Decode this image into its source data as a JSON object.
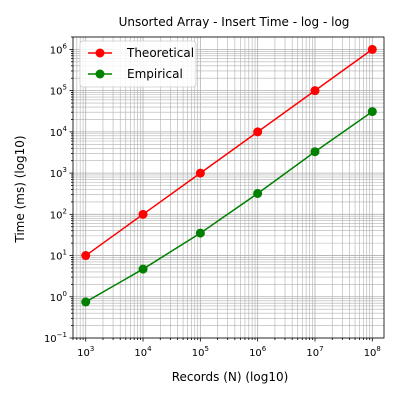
{
  "chart_data": {
    "type": "line",
    "title": "Unsorted Array - Insert Time - log - log",
    "xlabel": "Records (N) (log10)",
    "ylabel": "Time (ms) (log10)",
    "xscale": "log",
    "yscale": "log",
    "xlim": [
      600,
      160000000
    ],
    "ylim": [
      0.1,
      2000000
    ],
    "x_ticks": [
      {
        "value": 1000,
        "base": "10",
        "exp": "3"
      },
      {
        "value": 10000,
        "base": "10",
        "exp": "4"
      },
      {
        "value": 100000,
        "base": "10",
        "exp": "5"
      },
      {
        "value": 1000000,
        "base": "10",
        "exp": "6"
      },
      {
        "value": 10000000,
        "base": "10",
        "exp": "7"
      },
      {
        "value": 100000000,
        "base": "10",
        "exp": "8"
      }
    ],
    "y_ticks": [
      {
        "value": 0.1,
        "base": "10",
        "exp": "−1"
      },
      {
        "value": 1,
        "base": "10",
        "exp": "0"
      },
      {
        "value": 10,
        "base": "10",
        "exp": "1"
      },
      {
        "value": 100,
        "base": "10",
        "exp": "2"
      },
      {
        "value": 1000,
        "base": "10",
        "exp": "3"
      },
      {
        "value": 10000,
        "base": "10",
        "exp": "4"
      },
      {
        "value": 100000,
        "base": "10",
        "exp": "5"
      },
      {
        "value": 1000000,
        "base": "10",
        "exp": "6"
      }
    ],
    "grid": "major and minor",
    "legend_position": "top-left",
    "series": [
      {
        "name": "Theoretical",
        "color": "#ff0000",
        "x": [
          1000,
          10000,
          100000,
          1000000,
          10000000,
          100000000
        ],
        "y": [
          10,
          100,
          1000,
          10000,
          100000,
          1000000
        ]
      },
      {
        "name": "Empirical",
        "color": "#008000",
        "x": [
          1000,
          10000,
          100000,
          1000000,
          10000000,
          100000000
        ],
        "y": [
          0.75,
          4.7,
          35,
          320,
          3300,
          31000
        ]
      }
    ]
  }
}
